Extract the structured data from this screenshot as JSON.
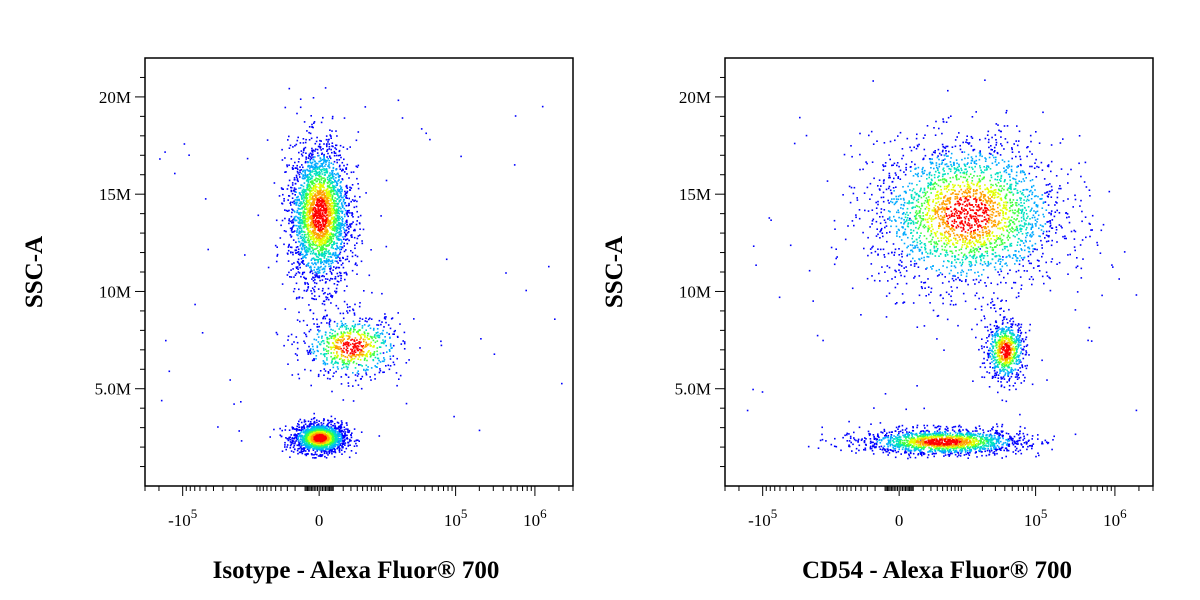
{
  "chart_data": [
    {
      "type": "scatter",
      "subtype": "flow-cytometry-density-dot-plot",
      "xlabel": "Isotype - Alexa Fluor® 700",
      "ylabel": "SSC-A",
      "x_scale": "biexponential",
      "y_scale": "linear",
      "ylim": [
        0,
        22000000
      ],
      "y_ticks": [
        {
          "value": 5000000,
          "label": "5.0M"
        },
        {
          "value": 10000000,
          "label": "10M"
        },
        {
          "value": 15000000,
          "label": "15M"
        },
        {
          "value": 20000000,
          "label": "20M"
        }
      ],
      "x_ticks": [
        {
          "value": -100000,
          "base": "-10",
          "exp": "5"
        },
        {
          "value": 0,
          "base": "0",
          "exp": ""
        },
        {
          "value": 100000,
          "base": "10",
          "exp": "5"
        },
        {
          "value": 1000000,
          "base": "10",
          "exp": "6"
        }
      ],
      "populations": [
        {
          "x_center": 0,
          "y_center": 2500000,
          "y_spread": 700000,
          "x_spread": 2000,
          "relative_density": "very high"
        },
        {
          "x_center": 0,
          "y_center": 14000000,
          "y_spread": 3300000,
          "x_spread": 2500,
          "relative_density": "high"
        },
        {
          "x_center": 3000,
          "y_center": 7200000,
          "y_spread": 1500000,
          "x_spread": 6000,
          "relative_density": "medium"
        }
      ],
      "color_scale": [
        "#0000ff",
        "#00aaff",
        "#00e0c0",
        "#40ff40",
        "#e0ff00",
        "#ffa000",
        "#ff0000"
      ],
      "grid": false,
      "legend": "none"
    },
    {
      "type": "scatter",
      "subtype": "flow-cytometry-density-dot-plot",
      "xlabel": "CD54 - Alexa Fluor® 700",
      "ylabel": "SSC-A",
      "x_scale": "biexponential",
      "y_scale": "linear",
      "ylim": [
        0,
        22000000
      ],
      "y_ticks": [
        {
          "value": 5000000,
          "label": "5.0M"
        },
        {
          "value": 10000000,
          "label": "10M"
        },
        {
          "value": 15000000,
          "label": "15M"
        },
        {
          "value": 20000000,
          "label": "20M"
        }
      ],
      "x_ticks": [
        {
          "value": -100000,
          "base": "-10",
          "exp": "5"
        },
        {
          "value": 0,
          "base": "0",
          "exp": ""
        },
        {
          "value": 100000,
          "base": "10",
          "exp": "5"
        },
        {
          "value": 1000000,
          "base": "10",
          "exp": "6"
        }
      ],
      "populations": [
        {
          "x_center": 5000,
          "y_center": 2300000,
          "y_spread": 600000,
          "x_spread": 15000,
          "relative_density": "very high"
        },
        {
          "x_center": 12000,
          "y_center": 14000000,
          "y_spread": 3500000,
          "x_spread": 25000,
          "relative_density": "high"
        },
        {
          "x_center": 40000,
          "y_center": 7000000,
          "y_spread": 1400000,
          "x_spread": 20000,
          "relative_density": "medium"
        }
      ],
      "color_scale": [
        "#0000ff",
        "#00aaff",
        "#00e0c0",
        "#40ff40",
        "#e0ff00",
        "#ffa000",
        "#ff0000"
      ],
      "grid": false,
      "legend": "none"
    }
  ]
}
